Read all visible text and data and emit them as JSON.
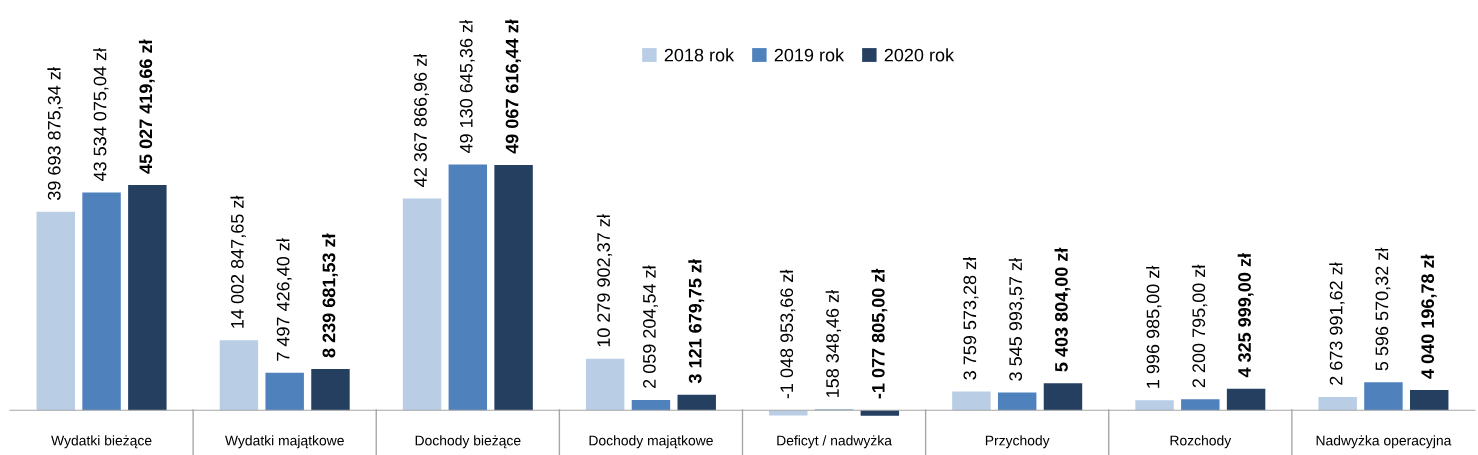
{
  "chart_data": {
    "type": "bar",
    "categories": [
      "Wydatki bieżące",
      "Wydatki majątkowe",
      "Dochody bieżące",
      "Dochody majątkowe",
      "Deficyt / nadwyżka",
      "Przychody",
      "Rozchody",
      "Nadwyżka operacyjna"
    ],
    "series": [
      {
        "name": "2018 rok",
        "color": "#b9cde5",
        "values": [
          39693875.34,
          14002847.65,
          42367866.96,
          10279902.37,
          -1048953.66,
          3759573.28,
          1996985.0,
          2673991.62
        ],
        "value_labels": [
          "39 693 875,34 zł",
          "14 002 847,65 zł",
          "42 367 866,96 zł",
          "10 279 902,37 zł",
          "-1 048 953,66 zł",
          "3 759 573,28 zł",
          "1 996 985,00 zł",
          "2 673 991,62 zł"
        ]
      },
      {
        "name": "2019 rok",
        "color": "#4f81bd",
        "values": [
          43534075.04,
          7497426.4,
          49130645.36,
          2059204.54,
          158348.46,
          3545993.57,
          2200795.0,
          5596570.32
        ],
        "value_labels": [
          "43 534 075,04 zł",
          "7 497 426,40 zł",
          "49 130 645,36 zł",
          "2 059 204,54 zł",
          "158 348,46 zł",
          "3 545 993,57 zł",
          "2 200 795,00 zł",
          "5 596 570,32 zł"
        ]
      },
      {
        "name": "2020 rok",
        "color": "#243f60",
        "values": [
          45027419.66,
          8239681.53,
          49067616.44,
          3121679.75,
          -1077805.0,
          5403804.0,
          4325999.0,
          4040196.78
        ],
        "value_labels": [
          "45 027 419,66 zł",
          "8 239 681,53 zł",
          "49 067 616,44 zł",
          "3 121 679,75 zł",
          "-1 077 805,00 zł",
          "5 403 804,00 zł",
          "4 325 999,00 zł",
          "4 040 196,78 zł"
        ]
      }
    ],
    "legend": "top",
    "tick_labels": "x"
  }
}
